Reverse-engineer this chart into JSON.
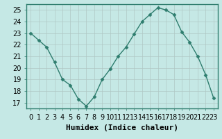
{
  "x": [
    0,
    1,
    2,
    3,
    4,
    5,
    6,
    7,
    8,
    9,
    10,
    11,
    12,
    13,
    14,
    15,
    16,
    17,
    18,
    19,
    20,
    21,
    22,
    23
  ],
  "y": [
    23,
    22.4,
    21.8,
    20.5,
    19,
    18.5,
    17.3,
    16.7,
    17.5,
    19,
    19.9,
    21,
    21.8,
    22.9,
    24,
    24.6,
    25.2,
    25,
    24.6,
    23.1,
    22.2,
    21,
    19.4,
    17.4
  ],
  "line_color": "#2e7d6e",
  "marker": "D",
  "marker_size": 2.5,
  "bg_color": "#c5e8e5",
  "grid_color": "#b0c8c5",
  "xlabel": "Humidex (Indice chaleur)",
  "xlim": [
    -0.5,
    23.5
  ],
  "ylim": [
    16.5,
    25.5
  ],
  "yticks": [
    17,
    18,
    19,
    20,
    21,
    22,
    23,
    24,
    25
  ],
  "xtick_labels": [
    "0",
    "1",
    "2",
    "3",
    "4",
    "5",
    "6",
    "7",
    "8",
    "9",
    "10",
    "11",
    "12",
    "13",
    "14",
    "15",
    "16",
    "17",
    "18",
    "19",
    "20",
    "21",
    "22",
    "23"
  ],
  "xlabel_fontsize": 8,
  "tick_fontsize": 7,
  "line_width": 1.0,
  "spine_color": "#2e7d6e"
}
